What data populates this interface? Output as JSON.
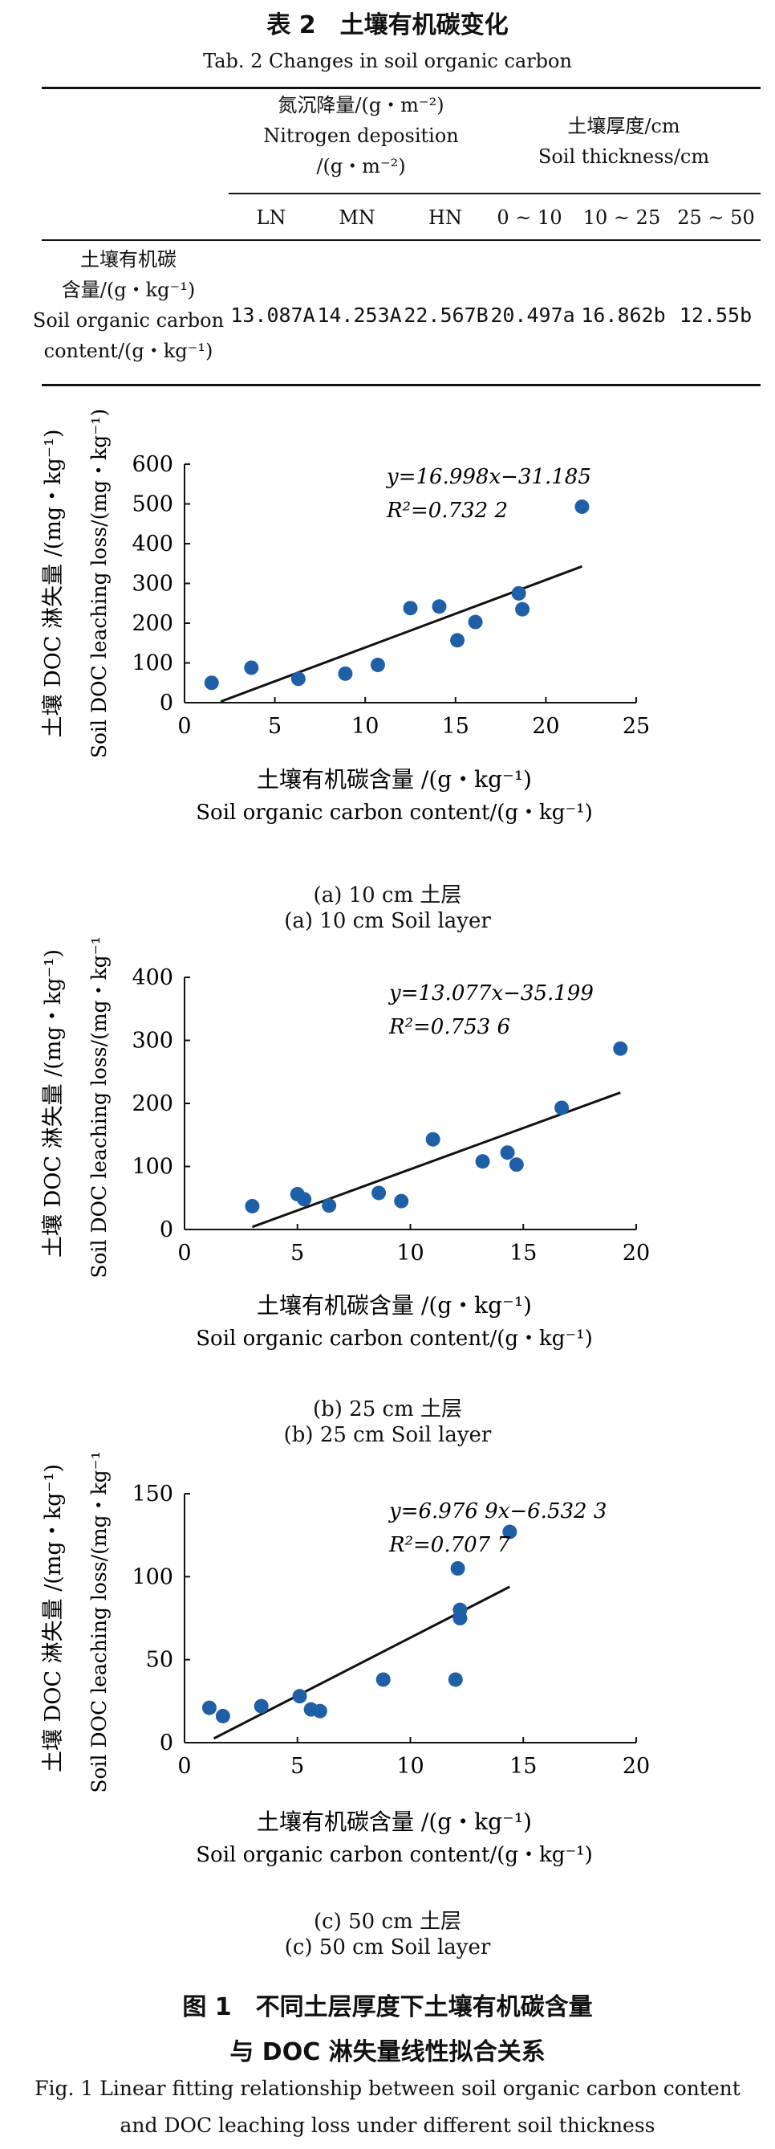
{
  "table": {
    "title_cn": "表 2　土壤有机碳变化",
    "title_en": "Tab. 2 Changes in soil organic carbon",
    "group1": [
      "氮沉降量/(g・m⁻²)",
      "Nitrogen deposition",
      "/(g・m⁻²)"
    ],
    "group2": [
      "土壤厚度/cm",
      "Soil thickness/cm"
    ],
    "columns": [
      "LN",
      "MN",
      "HN",
      "0 ~ 10",
      "10 ~ 25",
      "25 ~ 50"
    ],
    "row_label": [
      "土壤有机碳",
      "含量/(g・kg⁻¹)",
      "Soil organic carbon",
      "content/(g・kg⁻¹)"
    ],
    "row_values": [
      "13.087A",
      "14.253A",
      "22.567B",
      "20.497a",
      "16.862b",
      "12.55b"
    ]
  },
  "chart_data": [
    {
      "type": "scatter",
      "panel": "a",
      "ylabel_cn": "土壤 DOC 淋失量 /(mg・kg⁻¹)",
      "ylabel_en": "Soil DOC leaching loss/(mg・kg⁻¹)",
      "xlabel_cn": "土壤有机碳含量 /(g・kg⁻¹)",
      "xlabel_en": "Soil organic carbon content/(g・kg⁻¹)",
      "xlim": [
        0,
        25
      ],
      "ylim": [
        0,
        600
      ],
      "xticks": [
        0,
        5,
        10,
        15,
        20,
        25
      ],
      "yticks": [
        0,
        100,
        200,
        300,
        400,
        500,
        600
      ],
      "points": [
        [
          1.5,
          50
        ],
        [
          3.7,
          88
        ],
        [
          6.3,
          60
        ],
        [
          8.9,
          73
        ],
        [
          10.7,
          95
        ],
        [
          12.5,
          238
        ],
        [
          14.1,
          242
        ],
        [
          15.1,
          157
        ],
        [
          16.1,
          203
        ],
        [
          18.5,
          275
        ],
        [
          18.7,
          235
        ],
        [
          22.0,
          493
        ]
      ],
      "fit": {
        "slope": 16.998,
        "intercept": -31.185,
        "x_range": [
          2.0,
          22.0
        ]
      },
      "equation": "y=16.998x−31.185",
      "r2": "R²=0.732 2",
      "caption_cn": "(a) 10 cm 土层",
      "caption_en": "(a) 10 cm Soil layer"
    },
    {
      "type": "scatter",
      "panel": "b",
      "ylabel_cn": "土壤 DOC 淋失量 /(mg・kg⁻¹)",
      "ylabel_en": "Soil DOC leaching loss/(mg・kg⁻¹)",
      "xlabel_cn": "土壤有机碳含量 /(g・kg⁻¹)",
      "xlabel_en": "Soil organic carbon content/(g・kg⁻¹)",
      "xlim": [
        0,
        20
      ],
      "ylim": [
        0,
        400
      ],
      "xticks": [
        0,
        5,
        10,
        15,
        20
      ],
      "yticks": [
        0,
        100,
        200,
        300,
        400
      ],
      "points": [
        [
          3.0,
          37
        ],
        [
          5.0,
          56
        ],
        [
          5.3,
          48
        ],
        [
          6.4,
          38
        ],
        [
          8.6,
          58
        ],
        [
          9.6,
          45
        ],
        [
          11.0,
          143
        ],
        [
          13.2,
          108
        ],
        [
          14.3,
          122
        ],
        [
          14.7,
          103
        ],
        [
          16.7,
          193
        ],
        [
          19.3,
          287
        ]
      ],
      "fit": {
        "slope": 13.077,
        "intercept": -35.199,
        "x_range": [
          3.0,
          19.3
        ]
      },
      "equation": "y=13.077x−35.199",
      "r2": "R²=0.753 6",
      "caption_cn": "(b) 25 cm 土层",
      "caption_en": "(b) 25 cm Soil layer"
    },
    {
      "type": "scatter",
      "panel": "c",
      "ylabel_cn": "土壤 DOC 淋失量 /(mg・kg⁻¹)",
      "ylabel_en": "Soil DOC leaching loss/(mg・kg⁻¹)",
      "xlabel_cn": "土壤有机碳含量 /(g・kg⁻¹)",
      "xlabel_en": "Soil organic carbon content/(g・kg⁻¹)",
      "xlim": [
        0,
        20
      ],
      "ylim": [
        0,
        150
      ],
      "xticks": [
        0,
        5,
        10,
        15,
        20
      ],
      "yticks": [
        0,
        50,
        100,
        150
      ],
      "points": [
        [
          1.1,
          21
        ],
        [
          1.7,
          16
        ],
        [
          3.4,
          22
        ],
        [
          5.1,
          28
        ],
        [
          5.6,
          20
        ],
        [
          6.0,
          19
        ],
        [
          8.8,
          38
        ],
        [
          12.0,
          38
        ],
        [
          12.1,
          105
        ],
        [
          12.2,
          80
        ],
        [
          12.2,
          75
        ],
        [
          14.4,
          127
        ]
      ],
      "fit": {
        "slope": 6.9769,
        "intercept": -6.5323,
        "x_range": [
          1.3,
          14.4
        ]
      },
      "equation": "y=6.976 9x−6.532 3",
      "r2": "R²=0.707 7",
      "caption_cn": "(c) 50 cm 土层",
      "caption_en": "(c) 50 cm Soil layer"
    }
  ],
  "figure": {
    "title_cn_1": "图 1　不同土层厚度下土壤有机碳含量",
    "title_cn_2": "与 DOC 淋失量线性拟合关系",
    "title_en_1": "Fig. 1 Linear fitting relationship between soil organic carbon content",
    "title_en_2": "and DOC leaching loss under different soil thickness"
  },
  "colors": {
    "point": "#1f5fa8",
    "line": "#111111"
  }
}
